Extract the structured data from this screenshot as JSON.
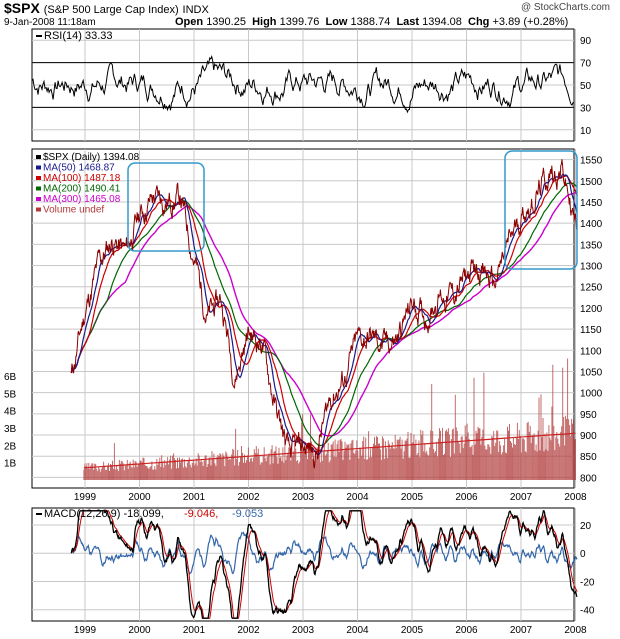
{
  "header": {
    "symbol": "$SPX",
    "name": "(S&P 500 Large Cap Index)",
    "exchange": "INDX",
    "watermark": "@ StockCharts.com",
    "datetime": "9-Jan-2008 11:18am",
    "quote": [
      {
        "label": "Open",
        "value": "1390.25"
      },
      {
        "label": "High",
        "value": "1399.76"
      },
      {
        "label": "Low",
        "value": "1388.74"
      },
      {
        "label": "Last",
        "value": "1394.08"
      },
      {
        "label": "Chg",
        "value": "+3.89 (+0.28%)"
      }
    ]
  },
  "colors": {
    "price": "#000000",
    "ma50": "#1a1a8c",
    "ma100": "#cc0000",
    "ma200": "#006600",
    "ma300": "#cc00cc",
    "volume": "#b03a3a",
    "volume_avg": "#cc2222",
    "macd_hist": "#3366aa",
    "macd_signal": "#cc0000",
    "highlight": "#3399cc",
    "grid": "#c8c8c8",
    "rsi_ref": "#000000"
  },
  "chart_data": [
    {
      "type": "line",
      "panel": "rsi",
      "title": "RSI(14) 33.33",
      "series": [
        {
          "name": "RSI(14)",
          "value_label": "33.33"
        }
      ],
      "y_ticks": [
        "90",
        "70",
        "50",
        "30",
        "10"
      ],
      "reference_lines": [
        70,
        30
      ],
      "ylim": [
        0,
        100
      ],
      "grid": true
    },
    {
      "type": "line",
      "panel": "price",
      "title": "$SPX (Daily) 1394.08",
      "x": [
        "1998.75",
        "1999.0",
        "1999.25",
        "1999.5",
        "1999.75",
        "2000.0",
        "2000.25",
        "2000.5",
        "2000.75",
        "2001.0",
        "2001.25",
        "2001.5",
        "2001.75",
        "2002.0",
        "2002.25",
        "2002.5",
        "2002.75",
        "2003.0",
        "2003.25",
        "2003.5",
        "2003.75",
        "2004.0",
        "2004.25",
        "2004.5",
        "2004.75",
        "2005.0",
        "2005.25",
        "2005.5",
        "2005.75",
        "2006.0",
        "2006.25",
        "2006.5",
        "2006.75",
        "2007.0",
        "2007.25",
        "2007.5",
        "2007.75",
        "2008.0"
      ],
      "series": [
        {
          "name": "$SPX (Daily)",
          "values": [
            1040,
            1190,
            1300,
            1360,
            1330,
            1420,
            1460,
            1450,
            1460,
            1320,
            1180,
            1220,
            1040,
            1140,
            1120,
            960,
            850,
            870,
            860,
            990,
            1030,
            1120,
            1130,
            1110,
            1130,
            1210,
            1180,
            1230,
            1230,
            1270,
            1300,
            1250,
            1340,
            1420,
            1460,
            1510,
            1530,
            1394
          ]
        },
        {
          "name": "MA(50)",
          "value_label": "1468.87"
        },
        {
          "name": "MA(100)",
          "value_label": "1487.18"
        },
        {
          "name": "MA(200)",
          "value_label": "1490.41"
        },
        {
          "name": "MA(300)",
          "value_label": "1465.08"
        },
        {
          "name": "Volume undef"
        }
      ],
      "x_ticks": [
        "1999",
        "2000",
        "2001",
        "2002",
        "2003",
        "2004",
        "2005",
        "2006",
        "2007",
        "2008"
      ],
      "y_ticks": [
        "1550",
        "1500",
        "1450",
        "1400",
        "1350",
        "1300",
        "1250",
        "1200",
        "1150",
        "1100",
        "1050",
        "1000",
        "950",
        "900",
        "850",
        "800"
      ],
      "ylim": [
        775,
        1575
      ],
      "volume_ticks": [
        "6B",
        "5B",
        "4B",
        "3B",
        "2B",
        "1B"
      ],
      "volume_ylim": [
        0,
        7
      ],
      "grid": true
    },
    {
      "type": "line",
      "panel": "macd",
      "title": "MACD(12,26,9)",
      "series": [
        {
          "name": "MACD(12,26,9)",
          "value_label": "-18.099"
        },
        {
          "name": "signal",
          "value_label": "-9.046"
        },
        {
          "name": "histogram",
          "value_label": "-9.053"
        }
      ],
      "x_ticks": [
        "1999",
        "2000",
        "2001",
        "2002",
        "2003",
        "2004",
        "2005",
        "2006",
        "2007",
        "2008"
      ],
      "y_ticks": [
        "20",
        "0",
        "-20",
        "-40"
      ],
      "ylim": [
        -48,
        32
      ],
      "grid": true
    }
  ]
}
